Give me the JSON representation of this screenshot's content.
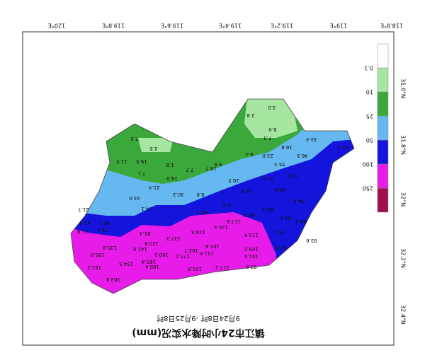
{
  "header": {
    "title": "镇江市24小时降水实况(mm)",
    "subtitle": "9月24日8时 -9月25日8时"
  },
  "lon_labels": [
    "118.8°E",
    "119°E",
    "119.2°E",
    "119.4°E",
    "119.6°E",
    "119.8°E",
    "120°E"
  ],
  "lat_labels": [
    "31.6°N",
    "31.8°N",
    "32°N",
    "32.2°N",
    "32.4°N"
  ],
  "legend": [
    "250",
    "100",
    "50",
    "25",
    "10",
    "0.1"
  ],
  "stations": [
    "54.2",
    "33.4",
    "46.5",
    "16.8",
    "23.0",
    "6.4",
    "7.3",
    "6.4",
    "3.0",
    "2.8",
    "55.3",
    "51.1",
    "61.0",
    "20.5",
    "9.9",
    "18.7",
    "7.7",
    "1.8",
    "14.0",
    "21.4",
    "30.3",
    "8.6",
    "69.0",
    "81.8",
    "54.8",
    "69.3",
    "64.1",
    "68.2",
    "75.6",
    "95.7",
    "98.5",
    "117.8",
    "120.4",
    "65.1",
    "93.6",
    "92.5",
    "118.8",
    "110.9",
    "137.3",
    "107.8",
    "109.2",
    "101.0",
    "97.8",
    "117.2",
    "101.8",
    "151.6",
    "182.7",
    "175.0",
    "160.5",
    "165.4",
    "180.4",
    "154.5",
    "141.8",
    "120.8",
    "85.4",
    "34.1",
    "43.0",
    "7.1",
    "19.5",
    "11.5",
    "3.5",
    "7.3",
    "21.7",
    "42.4",
    "40.2",
    "33.1",
    "31.9",
    "135.8",
    "105.8",
    "161.2",
    "163.8"
  ]
}
